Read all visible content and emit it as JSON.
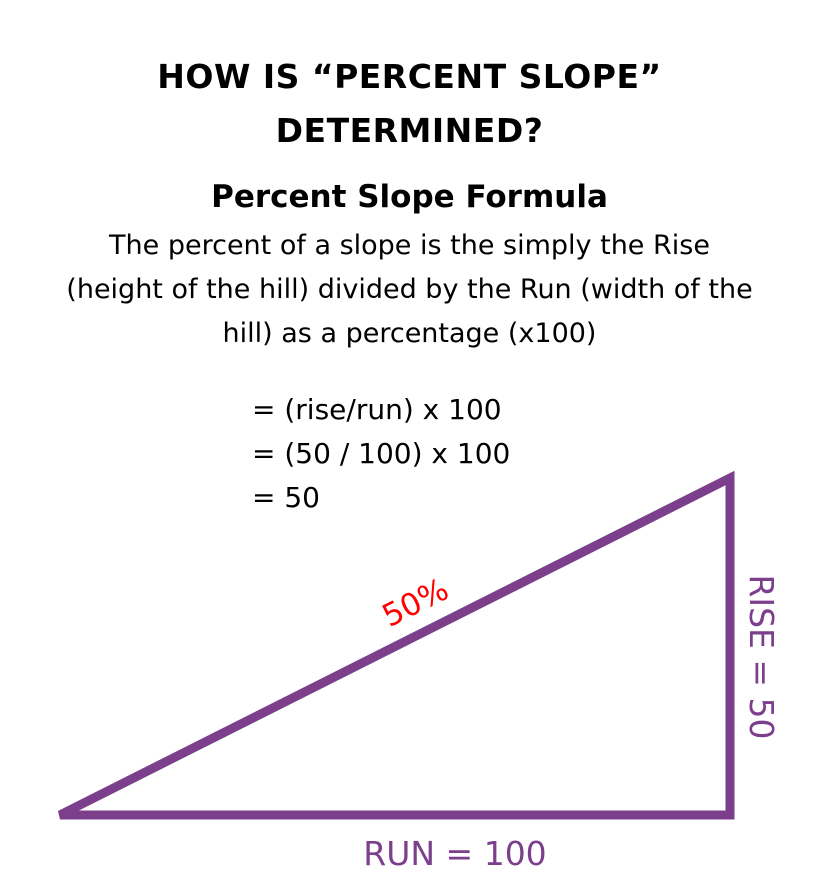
{
  "header": {
    "title_lines": [
      "HOW IS “PERCENT SLOPE”",
      "DETERMINED?"
    ],
    "subtitle": "Percent Slope Formula"
  },
  "description_lines": [
    "The percent of a slope is the simply the Rise",
    "(height of the hill) divided by the Run (width of the",
    "hill) as a percentage (x100)"
  ],
  "formula_lines": [
    "= (rise/run) x 100",
    "= (50 / 100) x 100",
    "= 50"
  ],
  "triangle": {
    "rise": 50,
    "run": 100,
    "slope_label": "50%",
    "rise_label": "RISE = 50",
    "run_label": "RUN = 100",
    "line_color": "#7b3f8c",
    "label_color": "#7b3f8c",
    "slope_label_color": "#ff0000"
  }
}
